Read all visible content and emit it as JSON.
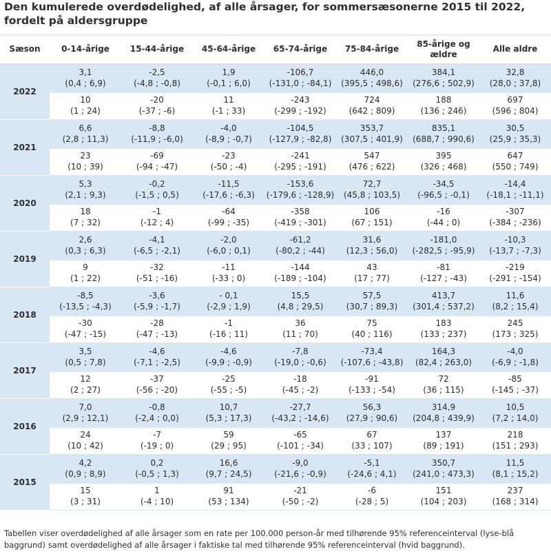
{
  "title": "Den kumulerede overdødelighed, af alle årsager, for sommersæsonerne 2015 til 2022, fordelt på aldersgruppe",
  "columns": [
    "Sæson",
    "0-14-årige",
    "15-44-årige",
    "45-64-årige",
    "65-74-årige",
    "75-84-årige",
    "85-årige og ældre",
    "Alle aldre"
  ],
  "rows": [
    {
      "season": "2022",
      "rate": [
        [
          "3,1",
          "(0,4 ; 6,9)"
        ],
        [
          "-2,5",
          "(-4,8 ; -0,8)"
        ],
        [
          "1,9",
          "(-0,1 ; 6,0)"
        ],
        [
          "-106,7",
          "(-131,0 ; -84,1)"
        ],
        [
          "446,0",
          "(395,5 ; 498,6)"
        ],
        [
          "384,1",
          "(276,6 ; 502,9)"
        ],
        [
          "32,8",
          "(28,0 ; 37,8)"
        ]
      ],
      "count": [
        [
          "10",
          "(1 ; 24)"
        ],
        [
          "-20",
          "(-37 ; -6)"
        ],
        [
          "11",
          "(-1 ; 33)"
        ],
        [
          "-243",
          "(-299 ; -192)"
        ],
        [
          "724",
          "(642 ; 809)"
        ],
        [
          "188",
          "(136 ; 246)"
        ],
        [
          "697",
          "(596 ; 804)"
        ]
      ]
    },
    {
      "season": "2021",
      "rate": [
        [
          "6,6",
          "(2,8 ; 11,3)"
        ],
        [
          "-8,8",
          "(-11,9 ; -6,0)"
        ],
        [
          "-4,0",
          "(-8,9 ; -0,7)"
        ],
        [
          "-104,5",
          "(-127,9 ; -82,8)"
        ],
        [
          "353,7",
          "(307,5 ; 401,9)"
        ],
        [
          "835,1",
          "(688,7 ; 990,6)"
        ],
        [
          "30,5",
          "(25,9 ; 35,3)"
        ]
      ],
      "count": [
        [
          "23",
          "(10 ; 39)"
        ],
        [
          "-69",
          "(-94 ; -47)"
        ],
        [
          "-23",
          "(-50 ; -4)"
        ],
        [
          "-241",
          "(-295 ; -191)"
        ],
        [
          "547",
          "(476 ; 622)"
        ],
        [
          "395",
          "(326 ; 468)"
        ],
        [
          "647",
          "(550 ; 749)"
        ]
      ]
    },
    {
      "season": "2020",
      "rate": [
        [
          "5,3",
          "(2,1 ; 9,3)"
        ],
        [
          "-0,2",
          "(-1,5 ; 0,5)"
        ],
        [
          "-11,5",
          "(-17,6 ; -6,3)"
        ],
        [
          "-153,6",
          "(-179,6 ; -128,9)"
        ],
        [
          "72,7",
          "(45,8 ; 103,5)"
        ],
        [
          "-34,5",
          "(-96,5 ; -0,1)"
        ],
        [
          "-14,4",
          "(-18,1 ; -11,1)"
        ]
      ],
      "count": [
        [
          "18",
          "(7 ; 32)"
        ],
        [
          "-1",
          "(-12 ; 4)"
        ],
        [
          "-64",
          "(-99 ; -35)"
        ],
        [
          "-358",
          "(-419 ; -301)"
        ],
        [
          "106",
          "(67 ; 151)"
        ],
        [
          "-16",
          "(-44 ; 0)"
        ],
        [
          "-307",
          "(-384 ; -236)"
        ]
      ]
    },
    {
      "season": "2019",
      "rate": [
        [
          "2,6",
          "(0,3 ; 6,3)"
        ],
        [
          "-4,1",
          "(-6,5 ; -2,1)"
        ],
        [
          "-2,0",
          "(-6,0 ; 0,1)"
        ],
        [
          "-61,2",
          "(-80,2 ; -44)"
        ],
        [
          "31,6",
          "(12,3 ; 56,0)"
        ],
        [
          "-181,0",
          "(-282,5 ; -95,9)"
        ],
        [
          "-10,3",
          "(-13,7 ; -7,3)"
        ]
      ],
      "count": [
        [
          "9",
          "(1 ; 22)"
        ],
        [
          "-32",
          "(-51 ; -16)"
        ],
        [
          "-11",
          "(-33 ; 0)"
        ],
        [
          "-144",
          "(-189 ; -104)"
        ],
        [
          "43",
          "(17 ; 77)"
        ],
        [
          "-81",
          "(-127 ; -43)"
        ],
        [
          "-219",
          "(-291 ; -154)"
        ]
      ]
    },
    {
      "season": "2018",
      "rate": [
        [
          "-8,5",
          "(-13,5 ; -4,3)"
        ],
        [
          "-3,6",
          "(-5,9 ; -1,7)"
        ],
        [
          "- 0,1",
          "(-2,9 ; 1,9)"
        ],
        [
          "15,5",
          "(4,8 ; 29,5)"
        ],
        [
          "57,5",
          "(30,7 ; 89,3)"
        ],
        [
          "413,7",
          "(301,4 ; 537,2)"
        ],
        [
          "11,6",
          "(8,2 ; 15,4)"
        ]
      ],
      "count": [
        [
          "-30",
          "(-47 ; -15)"
        ],
        [
          "-28",
          "(-47 ; -13)"
        ],
        [
          "-1",
          "(-16 ; 11)"
        ],
        [
          "36",
          "(11 ; 70)"
        ],
        [
          "75",
          "(40 ; 116)"
        ],
        [
          "183",
          "(133 ; 237)"
        ],
        [
          "245",
          "(173 ; 325)"
        ]
      ]
    },
    {
      "season": "2017",
      "rate": [
        [
          "3,5",
          "(0,5 ; 7,8)"
        ],
        [
          "-4,6",
          "(-7,1 ; -2,5)"
        ],
        [
          "-4,6",
          "(-9,9 ; -0,9)"
        ],
        [
          "-7,8",
          "(-19,0 ; -0,6)"
        ],
        [
          "-73,4",
          "(-107,6 ; -43,8)"
        ],
        [
          "164,3",
          "(82,4 ; 263,0)"
        ],
        [
          "-4,0",
          "(-6,9 ; -1,8)"
        ]
      ],
      "count": [
        [
          "12",
          "(2 ; 27)"
        ],
        [
          "-37",
          "(-56 ; -20)"
        ],
        [
          "-25",
          "(-55 ; -5)"
        ],
        [
          "-18",
          "(-45 ; -2)"
        ],
        [
          "-91",
          "(-133 ; -54)"
        ],
        [
          "72",
          "(36 ; 115)"
        ],
        [
          "-85",
          "(-145 ; -37)"
        ]
      ]
    },
    {
      "season": "2016",
      "rate": [
        [
          "7,0",
          "(2,9 ; 12,1)"
        ],
        [
          "-0,8",
          "(-2,4 ; 0,0)"
        ],
        [
          "10,7",
          "(5,3 ; 17,3)"
        ],
        [
          "-27,7",
          "(-43,2 ; -14,6)"
        ],
        [
          "56,3",
          "(27,9 ; 90,6)"
        ],
        [
          "314,9",
          "(204,8 ; 439,9)"
        ],
        [
          "10,5",
          "(7,2 ; 14,0)"
        ]
      ],
      "count": [
        [
          "24",
          "(10 ; 42)"
        ],
        [
          "-7",
          "(-19 ; 0)"
        ],
        [
          "59",
          "(29 ; 95)"
        ],
        [
          "-65",
          "(-101 ; -34)"
        ],
        [
          "67",
          "(33 ; 107)"
        ],
        [
          "137",
          "(89 ; 191)"
        ],
        [
          "218",
          "(151 ; 293)"
        ]
      ]
    },
    {
      "season": "2015",
      "rate": [
        [
          "4,2",
          "(0,9 ; 8,9)"
        ],
        [
          "0,2",
          "(-0,5 ; 1,3)"
        ],
        [
          "16,6",
          "(9,7 ; 24,5)"
        ],
        [
          "-9,0",
          "(-21,6 ; -0,9)"
        ],
        [
          "-5,1",
          "(-24,6 ; 4,1)"
        ],
        [
          "350,7",
          "(241,0 ; 473,3)"
        ],
        [
          "11,5",
          "(8,1 ; 15,2)"
        ]
      ],
      "count": [
        [
          "15",
          "(3 ; 31)"
        ],
        [
          "1",
          "(-4 ; 10)"
        ],
        [
          "91",
          "(53 ; 134)"
        ],
        [
          "-21",
          "(-50 ; -2)"
        ],
        [
          "-6",
          "(-28 ; 5)"
        ],
        [
          "151",
          "(104 ; 203)"
        ],
        [
          "237",
          "(168 ; 314)"
        ]
      ]
    }
  ],
  "note": "Tabellen viser overdødelighed af alle årsager som en rate per 100.000 person-år med tilhørende 95% referenceinterval (lyse-blå baggrund) samt overdødelighed af alle årsager i faktiske tal med tilhørende 95% referenceinterval (hvid baggrund).",
  "colors": {
    "rate_bg": "#d9e6f3",
    "count_bg": "#ffffff"
  }
}
